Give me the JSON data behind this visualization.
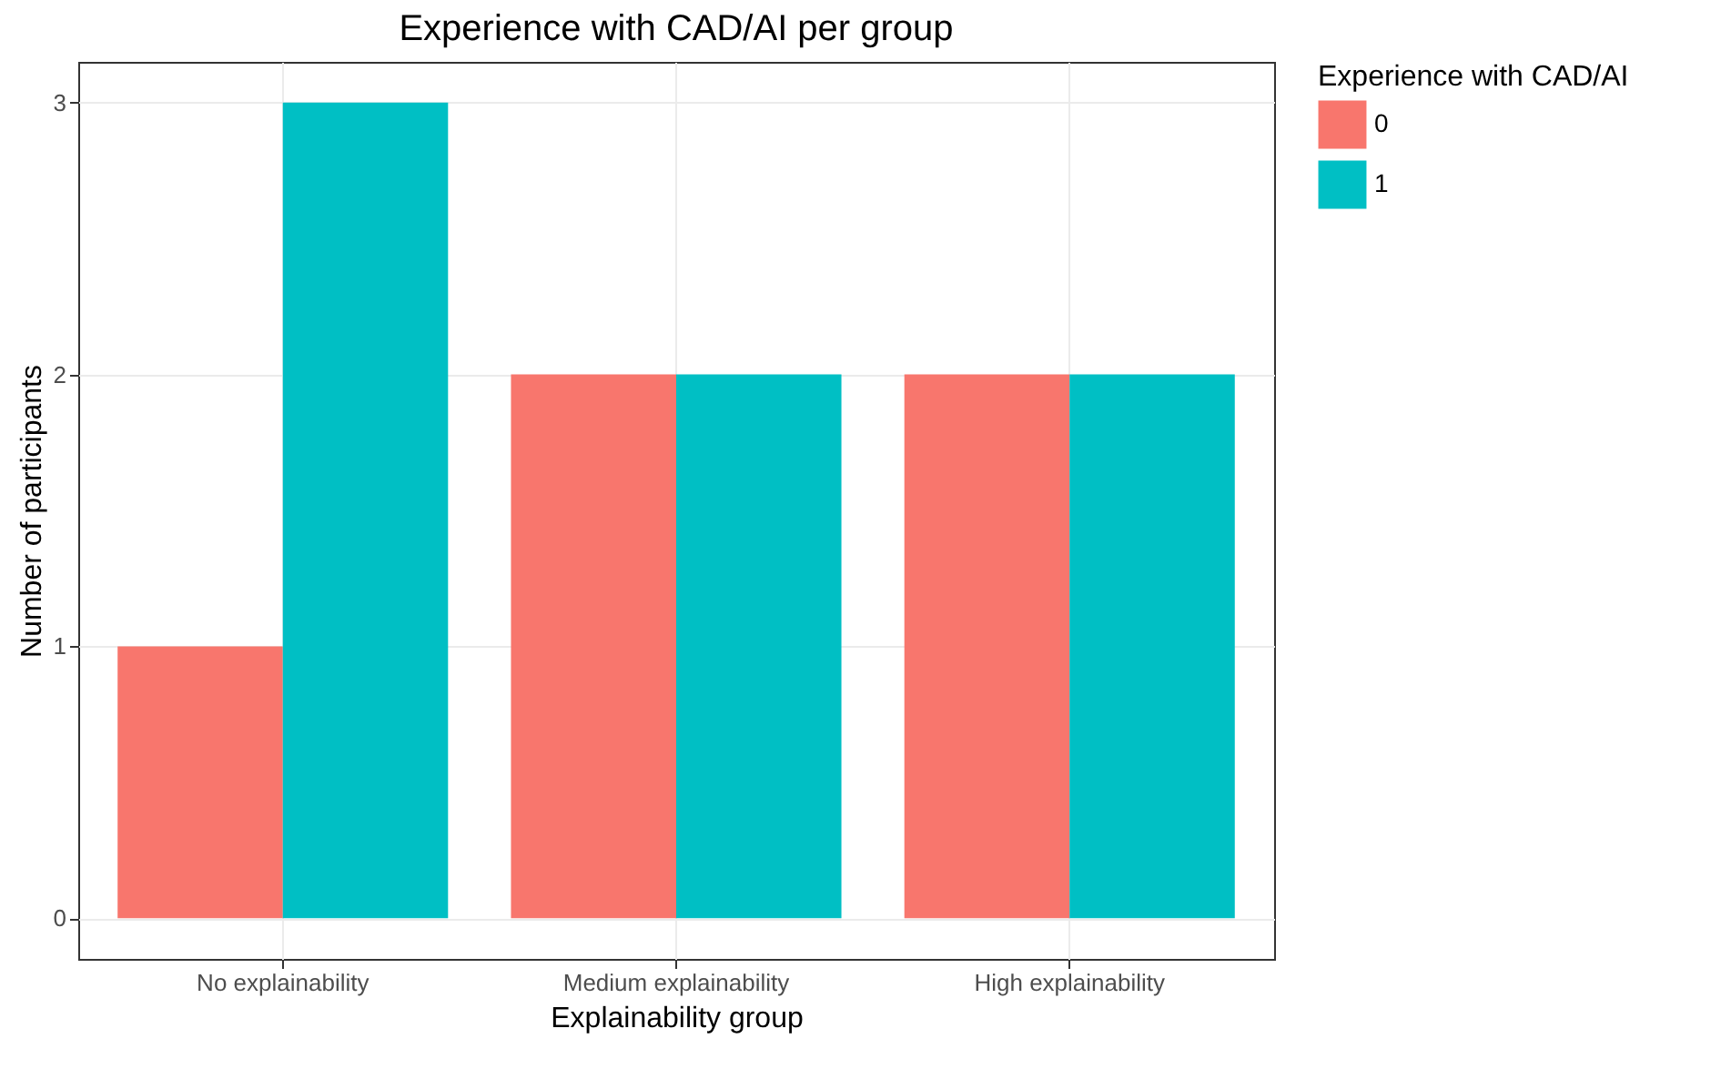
{
  "chart_data": {
    "type": "bar",
    "title": "Experience with CAD/AI per group",
    "xlabel": "Explainability group",
    "ylabel": "Number of participants",
    "legend_title": "Experience with CAD/AI",
    "categories": [
      "No explainability",
      "Medium explainability",
      "High explainability"
    ],
    "series": [
      {
        "name": "0",
        "color": "#f8766d",
        "values": [
          1,
          2,
          2
        ]
      },
      {
        "name": "1",
        "color": "#00bfc4",
        "values": [
          3,
          2,
          2
        ]
      }
    ],
    "ylim": [
      -0.15,
      3.15
    ],
    "yticks": [
      0,
      1,
      2,
      3
    ],
    "grid": true,
    "legend": "right"
  }
}
